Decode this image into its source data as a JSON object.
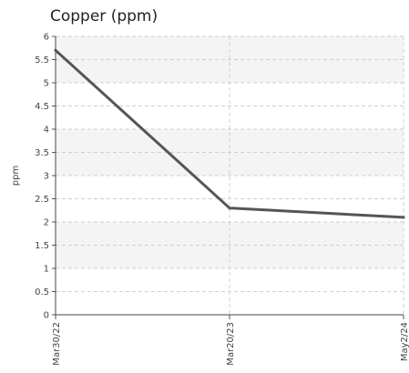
{
  "chart_data": {
    "type": "line",
    "title": "Copper (ppm)",
    "xlabel": "",
    "ylabel": "ppm",
    "categories": [
      "Mar30/22",
      "Mar20/23",
      "May2/24"
    ],
    "series": [
      {
        "values": [
          5.7,
          2.3,
          2.1
        ]
      }
    ],
    "ylim": [
      0,
      6
    ],
    "yticks": [
      "0",
      "0.5",
      "1",
      "1.5",
      "2",
      "2.5",
      "3",
      "3.5",
      "4",
      "4.5",
      "5",
      "5.5",
      "6"
    ],
    "grid": true,
    "line_color": "#555555"
  }
}
